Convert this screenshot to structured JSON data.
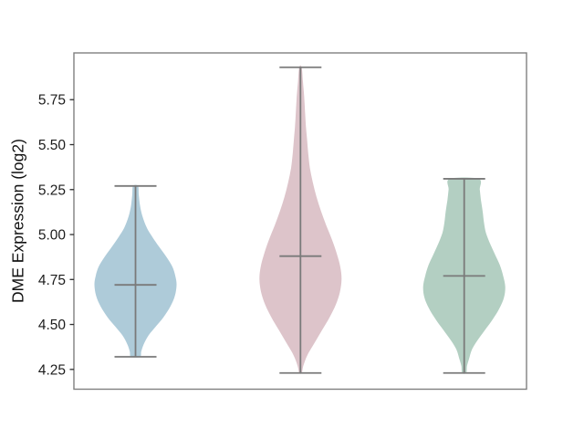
{
  "chart_data": {
    "type": "violin",
    "title": "",
    "xlabel": "",
    "ylabel": "DME Expression (log2)",
    "ylim": [
      4.14,
      6.01
    ],
    "yticks": [
      4.25,
      4.5,
      4.75,
      5.0,
      5.25,
      5.5,
      5.75
    ],
    "ytick_labels": [
      "4.25",
      "4.50",
      "4.75",
      "5.00",
      "5.25",
      "5.50",
      "5.75"
    ],
    "xtick_labels": [],
    "grid": false,
    "legend": null,
    "background": "#ffffff",
    "axis_color": "#7f7f7f",
    "tick_color": "#2f2f2f",
    "tick_label_color": "#1c1c1c",
    "inner_line_color": "#7a7a7a",
    "series": [
      {
        "id": "violin-1",
        "fill": "#aecbd9",
        "x_frac": 0.1361,
        "max_halfwidth_frac": 0.0907,
        "stats": {
          "min": 4.32,
          "max": 5.27,
          "median": 4.72
        },
        "profile": [
          [
            5.27,
            0.06
          ],
          [
            5.22,
            0.08
          ],
          [
            5.16,
            0.11
          ],
          [
            5.1,
            0.17
          ],
          [
            5.04,
            0.27
          ],
          [
            4.99,
            0.4
          ],
          [
            4.93,
            0.58
          ],
          [
            4.87,
            0.77
          ],
          [
            4.82,
            0.9
          ],
          [
            4.77,
            0.97
          ],
          [
            4.72,
            1.0
          ],
          [
            4.66,
            0.96
          ],
          [
            4.6,
            0.85
          ],
          [
            4.54,
            0.68
          ],
          [
            4.49,
            0.5
          ],
          [
            4.44,
            0.32
          ],
          [
            4.39,
            0.2
          ],
          [
            4.35,
            0.14
          ],
          [
            4.32,
            0.11
          ]
        ]
      },
      {
        "id": "violin-2",
        "fill": "#ddc4ca",
        "x_frac": 0.5006,
        "max_halfwidth_frac": 0.0907,
        "stats": {
          "min": 4.23,
          "max": 5.93,
          "median": 4.88
        },
        "profile": [
          [
            5.93,
            0.03
          ],
          [
            5.85,
            0.06
          ],
          [
            5.77,
            0.09
          ],
          [
            5.69,
            0.11
          ],
          [
            5.61,
            0.13
          ],
          [
            5.53,
            0.16
          ],
          [
            5.45,
            0.19
          ],
          [
            5.37,
            0.23
          ],
          [
            5.29,
            0.3
          ],
          [
            5.21,
            0.39
          ],
          [
            5.13,
            0.5
          ],
          [
            5.05,
            0.63
          ],
          [
            4.97,
            0.77
          ],
          [
            4.89,
            0.89
          ],
          [
            4.82,
            0.97
          ],
          [
            4.75,
            1.0
          ],
          [
            4.68,
            0.96
          ],
          [
            4.61,
            0.86
          ],
          [
            4.54,
            0.71
          ],
          [
            4.47,
            0.53
          ],
          [
            4.4,
            0.35
          ],
          [
            4.33,
            0.17
          ],
          [
            4.27,
            0.07
          ],
          [
            4.23,
            0.03
          ]
        ]
      },
      {
        "id": "violin-3",
        "fill": "#b3cfc2",
        "x_frac": 0.8623,
        "max_halfwidth_frac": 0.0907,
        "stats": {
          "min": 4.23,
          "max": 5.31,
          "median": 4.77
        },
        "profile": [
          [
            5.31,
            0.35
          ],
          [
            5.25,
            0.38
          ],
          [
            5.19,
            0.41
          ],
          [
            5.13,
            0.45
          ],
          [
            5.07,
            0.48
          ],
          [
            5.01,
            0.53
          ],
          [
            4.95,
            0.63
          ],
          [
            4.89,
            0.75
          ],
          [
            4.83,
            0.87
          ],
          [
            4.77,
            0.95
          ],
          [
            4.71,
            1.0
          ],
          [
            4.65,
            0.97
          ],
          [
            4.59,
            0.86
          ],
          [
            4.53,
            0.7
          ],
          [
            4.47,
            0.51
          ],
          [
            4.41,
            0.32
          ],
          [
            4.36,
            0.19
          ],
          [
            4.31,
            0.12
          ],
          [
            4.27,
            0.07
          ],
          [
            4.23,
            0.05
          ]
        ]
      }
    ]
  }
}
